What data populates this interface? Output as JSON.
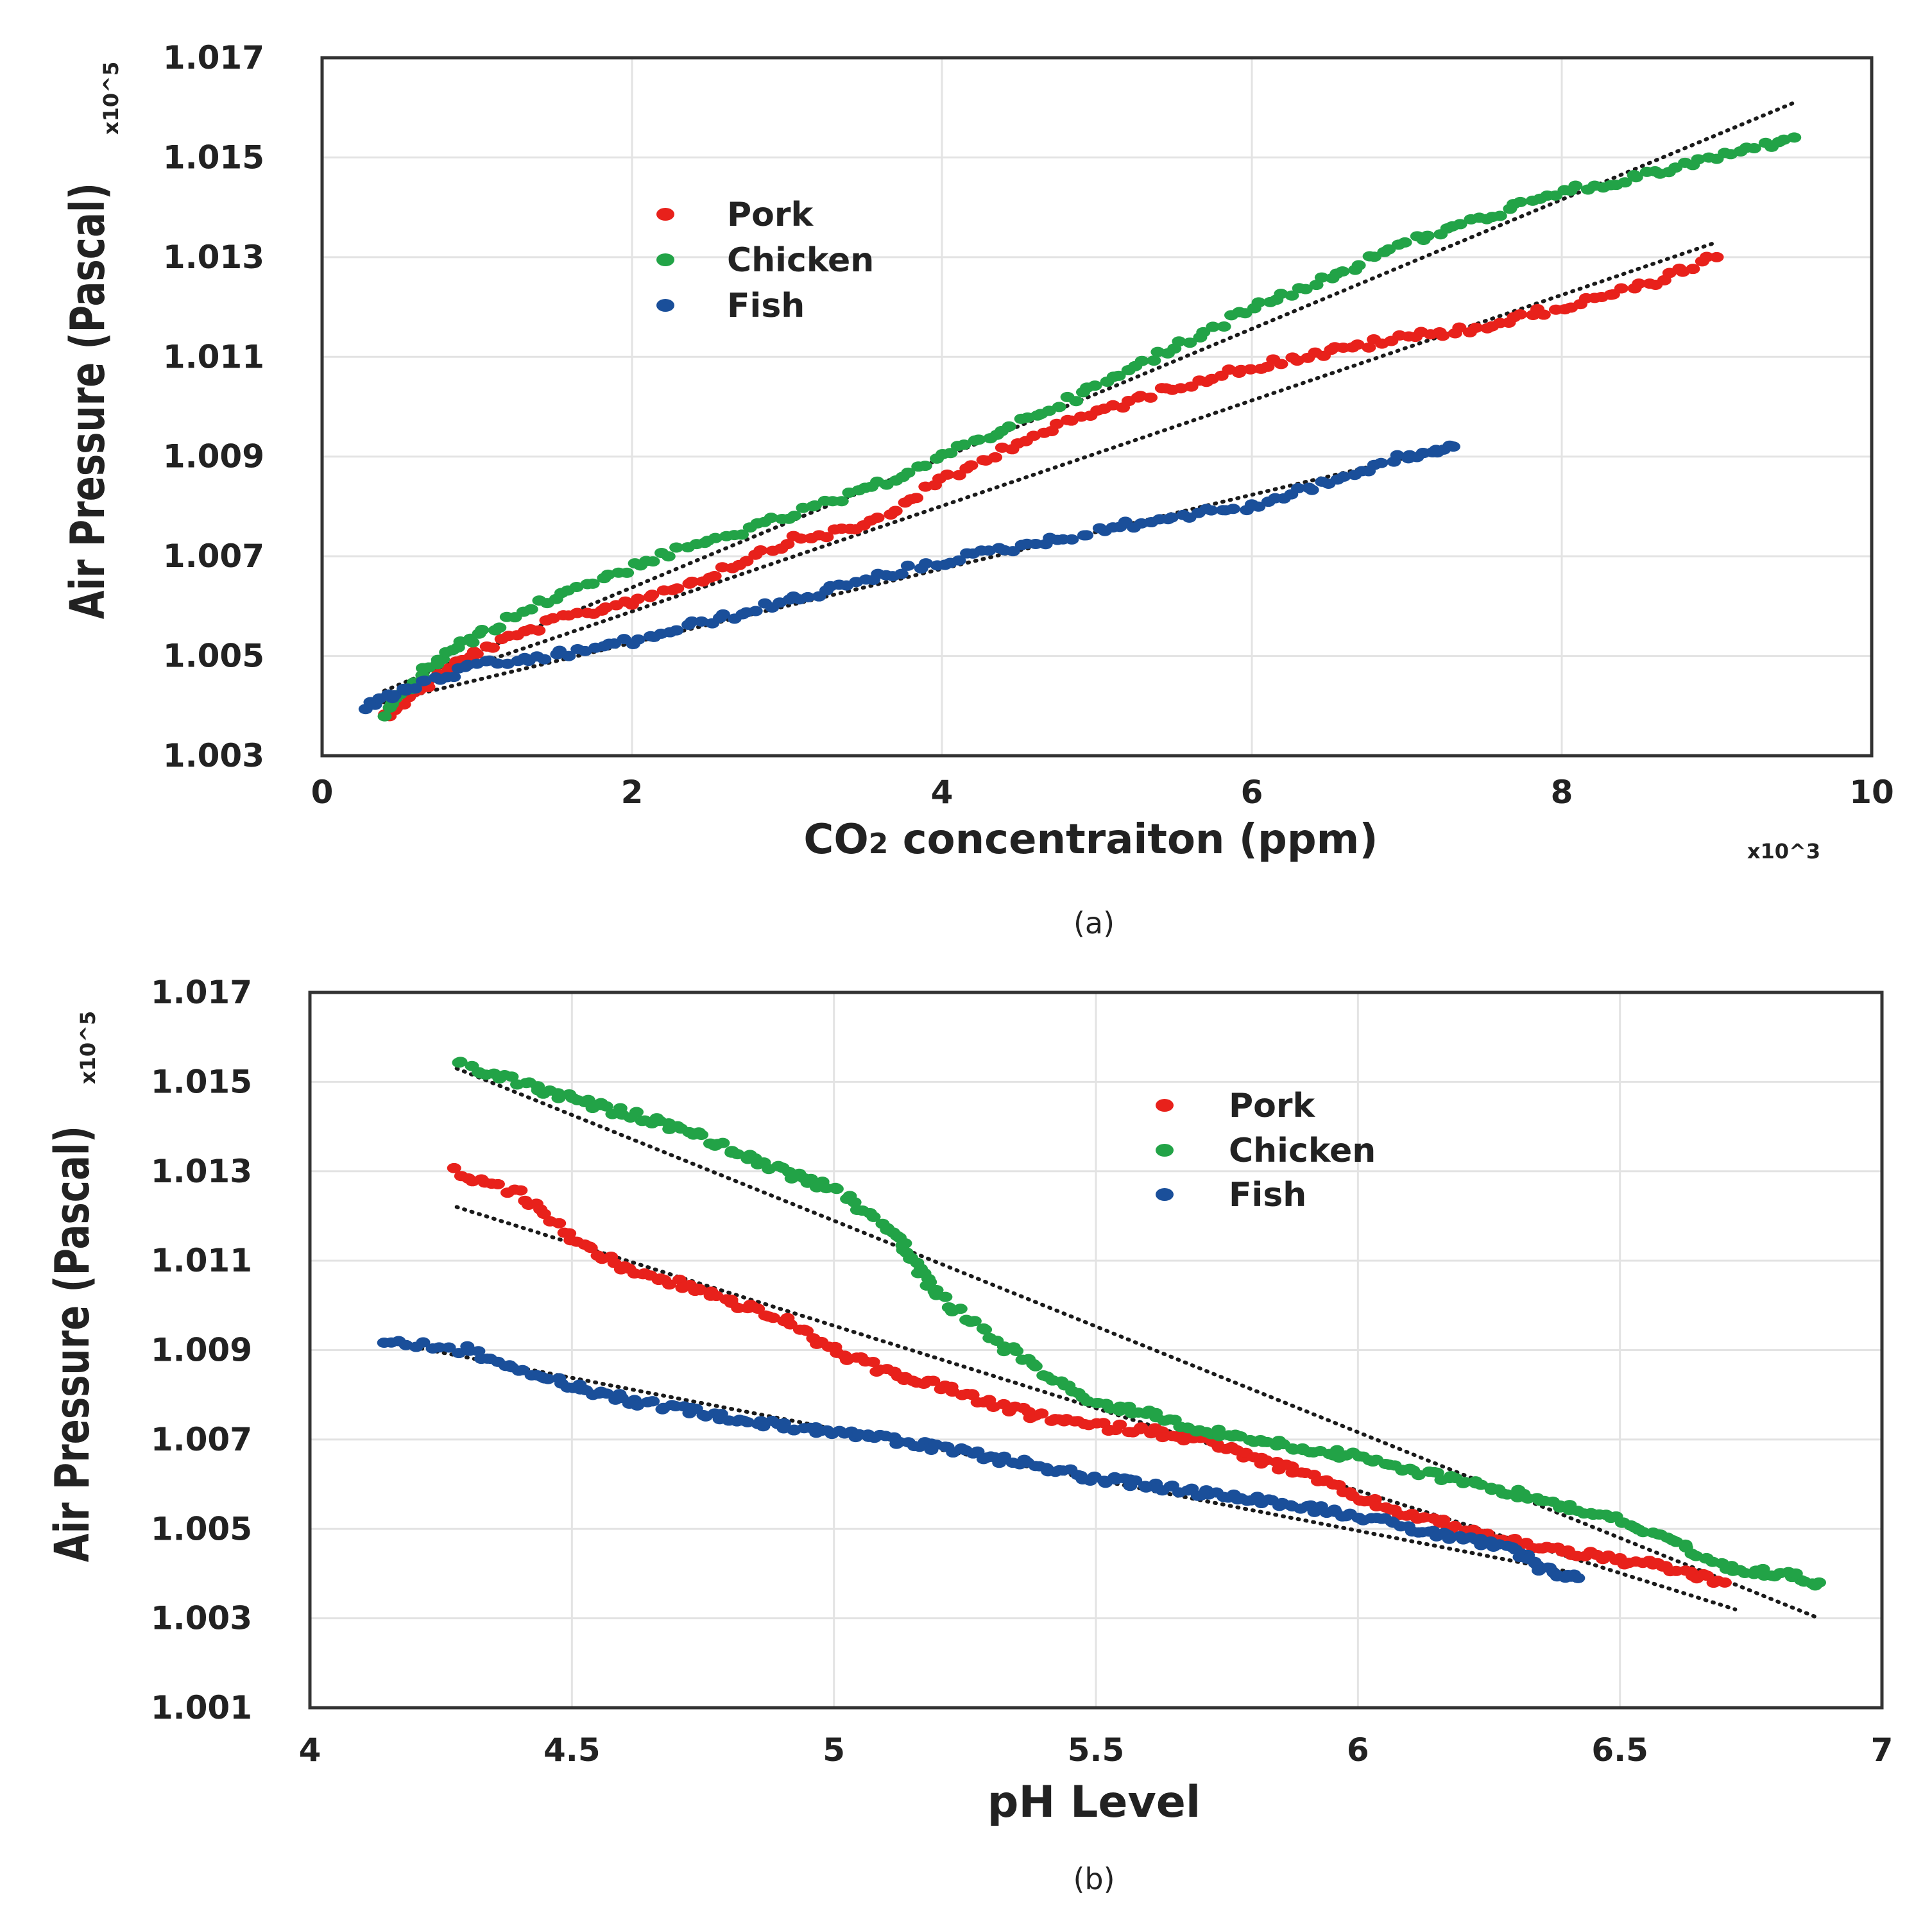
{
  "chart_data": [
    {
      "id": "a",
      "type": "scatter",
      "caption": "(a)",
      "xlabel_main": "CO",
      "xlabel_sub": "2",
      "xlabel_rest": " concentraiton (ppm)",
      "x_multiplier": "x10^3",
      "ylabel": "Air Pressure (Pascal)",
      "y_multiplier": "x10^5",
      "xlim": [
        0,
        10
      ],
      "ylim": [
        1.003,
        1.017
      ],
      "xticks": [
        "0",
        "2",
        "4",
        "6",
        "8",
        "10"
      ],
      "yticks": [
        "1.003",
        "1.005",
        "1.007",
        "1.009",
        "1.011",
        "1.013",
        "1.015",
        "1.017"
      ],
      "grid": true,
      "legend_position": "upper-left-center",
      "series": [
        {
          "name": "Pork",
          "color": "#e8211b",
          "points": [
            [
              0.4,
              1.0038
            ],
            [
              0.7,
              1.0045
            ],
            [
              1.0,
              1.0051
            ],
            [
              1.5,
              1.0057
            ],
            [
              2.0,
              1.0061
            ],
            [
              2.5,
              1.0066
            ],
            [
              3.0,
              1.0073
            ],
            [
              3.5,
              1.0076
            ],
            [
              4.0,
              1.0085
            ],
            [
              4.5,
              1.0093
            ],
            [
              5.0,
              1.0099
            ],
            [
              5.5,
              1.0104
            ],
            [
              6.0,
              1.0108
            ],
            [
              6.5,
              1.0111
            ],
            [
              7.0,
              1.0114
            ],
            [
              7.5,
              1.0116
            ],
            [
              8.0,
              1.012
            ],
            [
              8.5,
              1.0124
            ],
            [
              9.0,
              1.013
            ]
          ],
          "trend": [
            [
              0.4,
              1.0042
            ],
            [
              9.0,
              1.0133
            ]
          ]
        },
        {
          "name": "Chicken",
          "color": "#22a347",
          "points": [
            [
              0.4,
              1.0038
            ],
            [
              0.7,
              1.0048
            ],
            [
              1.0,
              1.0054
            ],
            [
              1.5,
              1.0062
            ],
            [
              2.0,
              1.0068
            ],
            [
              2.5,
              1.0073
            ],
            [
              3.0,
              1.0078
            ],
            [
              3.5,
              1.0083
            ],
            [
              4.0,
              1.009
            ],
            [
              4.5,
              1.0097
            ],
            [
              5.0,
              1.0104
            ],
            [
              5.5,
              1.0112
            ],
            [
              6.0,
              1.012
            ],
            [
              6.5,
              1.0126
            ],
            [
              7.0,
              1.0133
            ],
            [
              7.5,
              1.0138
            ],
            [
              8.0,
              1.0143
            ],
            [
              8.5,
              1.0146
            ],
            [
              9.0,
              1.015
            ],
            [
              9.5,
              1.0154
            ]
          ],
          "trend": [
            [
              0.4,
              1.0043
            ],
            [
              9.5,
              1.0161
            ]
          ]
        },
        {
          "name": "Fish",
          "color": "#1a4f9a",
          "points": [
            [
              0.3,
              1.004
            ],
            [
              0.6,
              1.0044
            ],
            [
              1.0,
              1.0048
            ],
            [
              1.5,
              1.005
            ],
            [
              2.0,
              1.0053
            ],
            [
              2.5,
              1.0057
            ],
            [
              3.0,
              1.0061
            ],
            [
              3.5,
              1.0065
            ],
            [
              4.0,
              1.0069
            ],
            [
              4.5,
              1.0072
            ],
            [
              5.0,
              1.0075
            ],
            [
              5.5,
              1.0078
            ],
            [
              6.0,
              1.008
            ],
            [
              6.5,
              1.0085
            ],
            [
              7.0,
              1.009
            ],
            [
              7.3,
              1.0092
            ]
          ],
          "trend": [
            [
              0.3,
              1.004
            ],
            [
              7.3,
              1.0092
            ]
          ]
        }
      ]
    },
    {
      "id": "b",
      "type": "scatter",
      "caption": "(b)",
      "xlabel": "pH Level",
      "ylabel": "Air Pressure (Pascal)",
      "y_multiplier": "x10^5",
      "xlim": [
        4,
        7
      ],
      "ylim": [
        1.001,
        1.017
      ],
      "xticks": [
        "4",
        "4.5",
        "5",
        "5.5",
        "6",
        "6.5",
        "7"
      ],
      "yticks": [
        "1.001",
        "1.003",
        "1.005",
        "1.007",
        "1.009",
        "1.011",
        "1.013",
        "1.015",
        "1.017"
      ],
      "grid": true,
      "legend_position": "upper-right-center",
      "series": [
        {
          "name": "Pork",
          "color": "#e8211b",
          "points": [
            [
              4.28,
              1.013
            ],
            [
              4.4,
              1.0125
            ],
            [
              4.5,
              1.0115
            ],
            [
              4.6,
              1.0108
            ],
            [
              4.7,
              1.0105
            ],
            [
              4.8,
              1.0101
            ],
            [
              4.9,
              1.0097
            ],
            [
              5.0,
              1.009
            ],
            [
              5.1,
              1.0085
            ],
            [
              5.2,
              1.0082
            ],
            [
              5.3,
              1.0078
            ],
            [
              5.4,
              1.0075
            ],
            [
              5.5,
              1.0073
            ],
            [
              5.6,
              1.0072
            ],
            [
              5.7,
              1.007
            ],
            [
              5.8,
              1.0066
            ],
            [
              5.9,
              1.0062
            ],
            [
              6.0,
              1.0057
            ],
            [
              6.1,
              1.0053
            ],
            [
              6.2,
              1.005
            ],
            [
              6.3,
              1.0047
            ],
            [
              6.4,
              1.0045
            ],
            [
              6.5,
              1.0043
            ],
            [
              6.6,
              1.0041
            ],
            [
              6.7,
              1.0038
            ]
          ],
          "trend": [
            [
              4.28,
              1.0122
            ],
            [
              6.72,
              1.0032
            ]
          ]
        },
        {
          "name": "Chicken",
          "color": "#22a347",
          "points": [
            [
              4.28,
              1.0154
            ],
            [
              4.4,
              1.015
            ],
            [
              4.5,
              1.0146
            ],
            [
              4.6,
              1.0143
            ],
            [
              4.7,
              1.014
            ],
            [
              4.8,
              1.0135
            ],
            [
              4.9,
              1.013
            ],
            [
              5.0,
              1.0126
            ],
            [
              5.1,
              1.0118
            ],
            [
              5.15,
              1.011
            ],
            [
              5.2,
              1.0102
            ],
            [
              5.3,
              1.0093
            ],
            [
              5.4,
              1.0085
            ],
            [
              5.5,
              1.0078
            ],
            [
              5.6,
              1.0076
            ],
            [
              5.7,
              1.0072
            ],
            [
              5.8,
              1.007
            ],
            [
              5.9,
              1.0068
            ],
            [
              6.0,
              1.0066
            ],
            [
              6.1,
              1.0063
            ],
            [
              6.2,
              1.0061
            ],
            [
              6.3,
              1.0058
            ],
            [
              6.4,
              1.0055
            ],
            [
              6.5,
              1.0052
            ],
            [
              6.6,
              1.0047
            ],
            [
              6.7,
              1.0041
            ],
            [
              6.8,
              1.004
            ],
            [
              6.88,
              1.0038
            ]
          ],
          "trend": [
            [
              4.28,
              1.0153
            ],
            [
              6.88,
              1.003
            ]
          ]
        },
        {
          "name": "Fish",
          "color": "#1a4f9a",
          "points": [
            [
              4.14,
              1.0092
            ],
            [
              4.3,
              1.009
            ],
            [
              4.4,
              1.0086
            ],
            [
              4.5,
              1.0082
            ],
            [
              4.6,
              1.0079
            ],
            [
              4.7,
              1.0077
            ],
            [
              4.8,
              1.0075
            ],
            [
              4.9,
              1.0073
            ],
            [
              5.0,
              1.0072
            ],
            [
              5.1,
              1.007
            ],
            [
              5.2,
              1.0068
            ],
            [
              5.3,
              1.0066
            ],
            [
              5.4,
              1.0064
            ],
            [
              5.5,
              1.0061
            ],
            [
              5.6,
              1.006
            ],
            [
              5.7,
              1.0058
            ],
            [
              5.8,
              1.0057
            ],
            [
              5.9,
              1.0055
            ],
            [
              6.0,
              1.0053
            ],
            [
              6.1,
              1.005
            ],
            [
              6.2,
              1.0048
            ],
            [
              6.3,
              1.0045
            ],
            [
              6.35,
              1.0041
            ],
            [
              6.42,
              1.0039
            ]
          ],
          "trend": [
            [
              4.14,
              1.0092
            ],
            [
              6.42,
              1.004
            ]
          ]
        }
      ]
    }
  ]
}
